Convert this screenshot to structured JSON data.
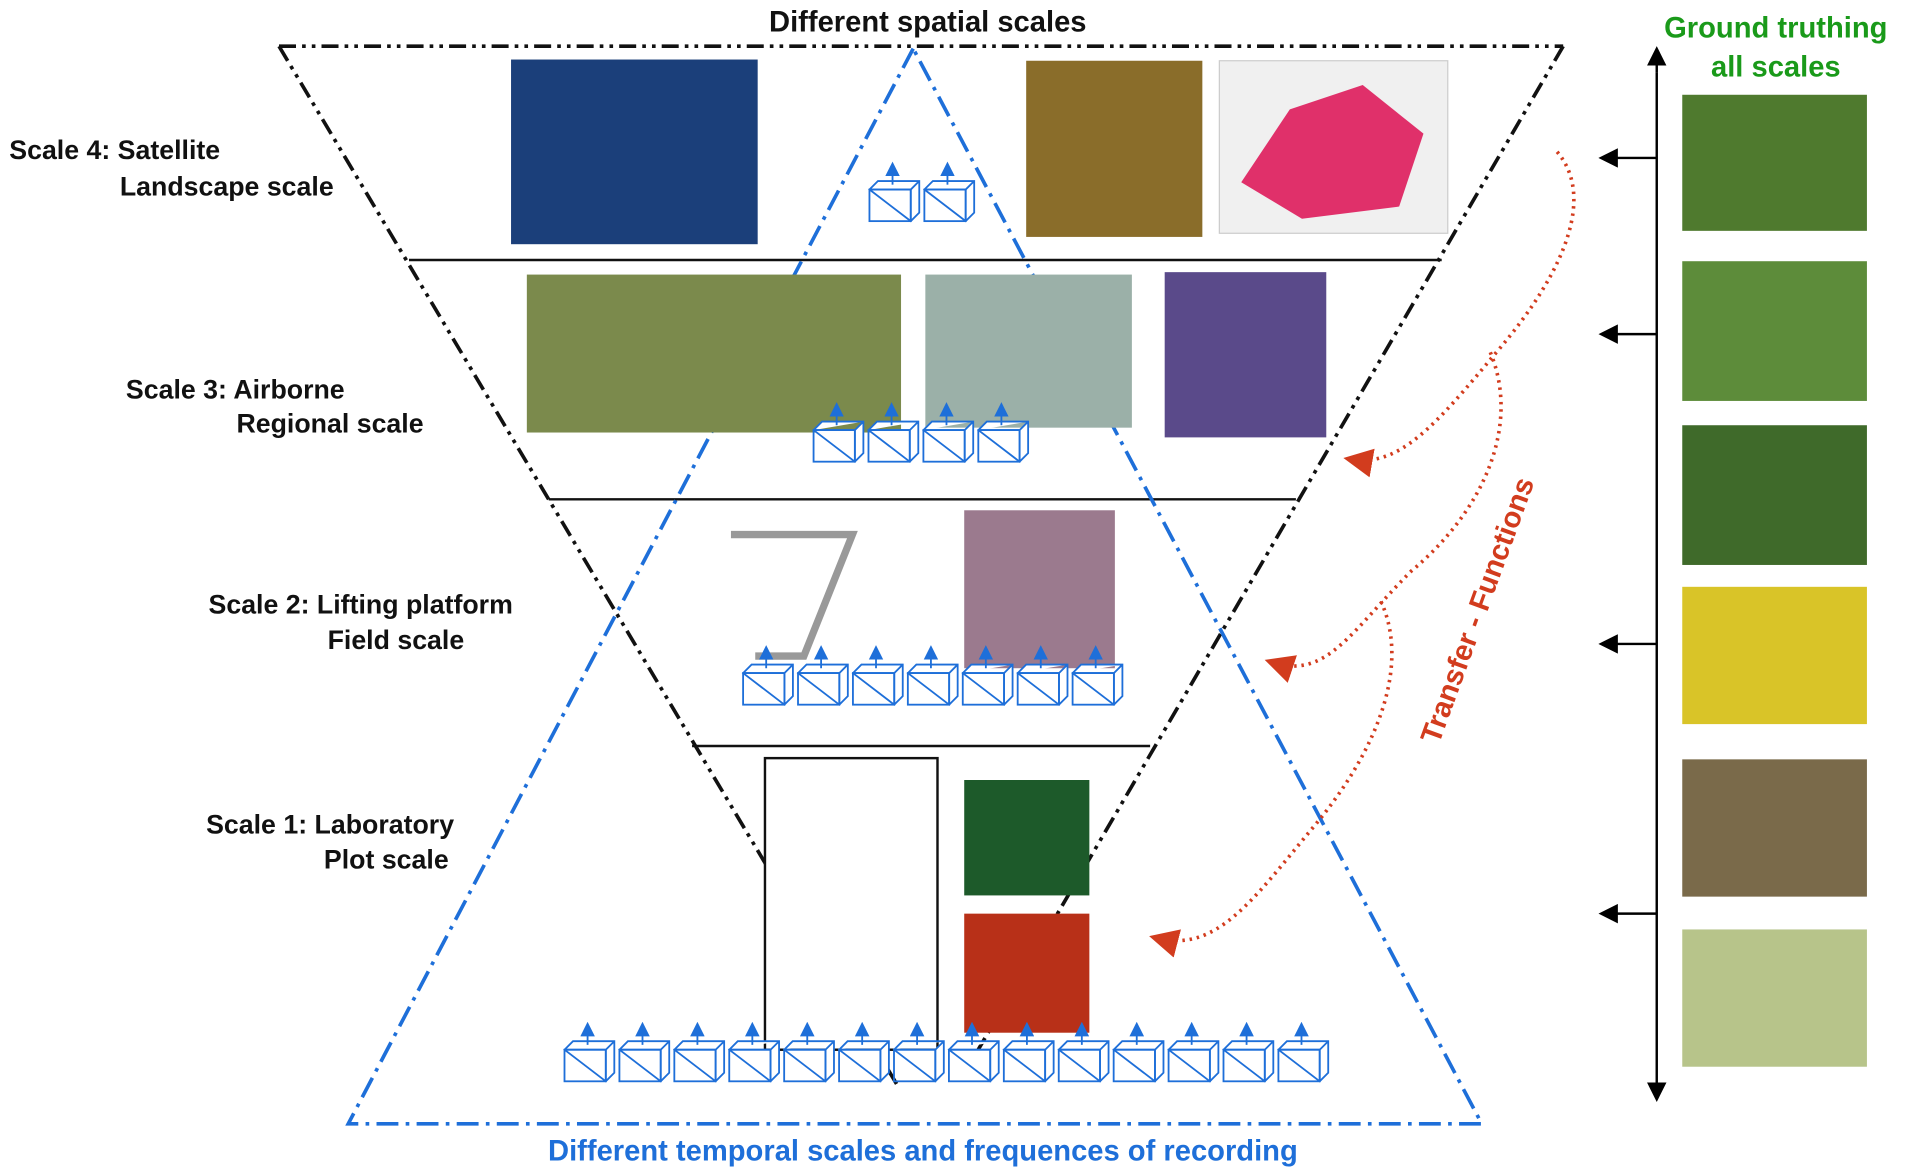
{
  "title": "Different spatial scales",
  "footer": "Different temporal scales and frequences of recording",
  "ground_truthing": [
    "Ground truthing",
    "all scales"
  ],
  "transfer": "Transfer - Functions",
  "scales": [
    {
      "name": "Scale 4: Satellite",
      "scale": "Landscape scale"
    },
    {
      "name": "Scale 3: Airborne",
      "scale": "Regional scale"
    },
    {
      "name": "Scale 2: Lifting platform",
      "scale": "Field scale"
    },
    {
      "name": "Scale 1: Laboratory",
      "scale": "Plot scale"
    }
  ]
}
